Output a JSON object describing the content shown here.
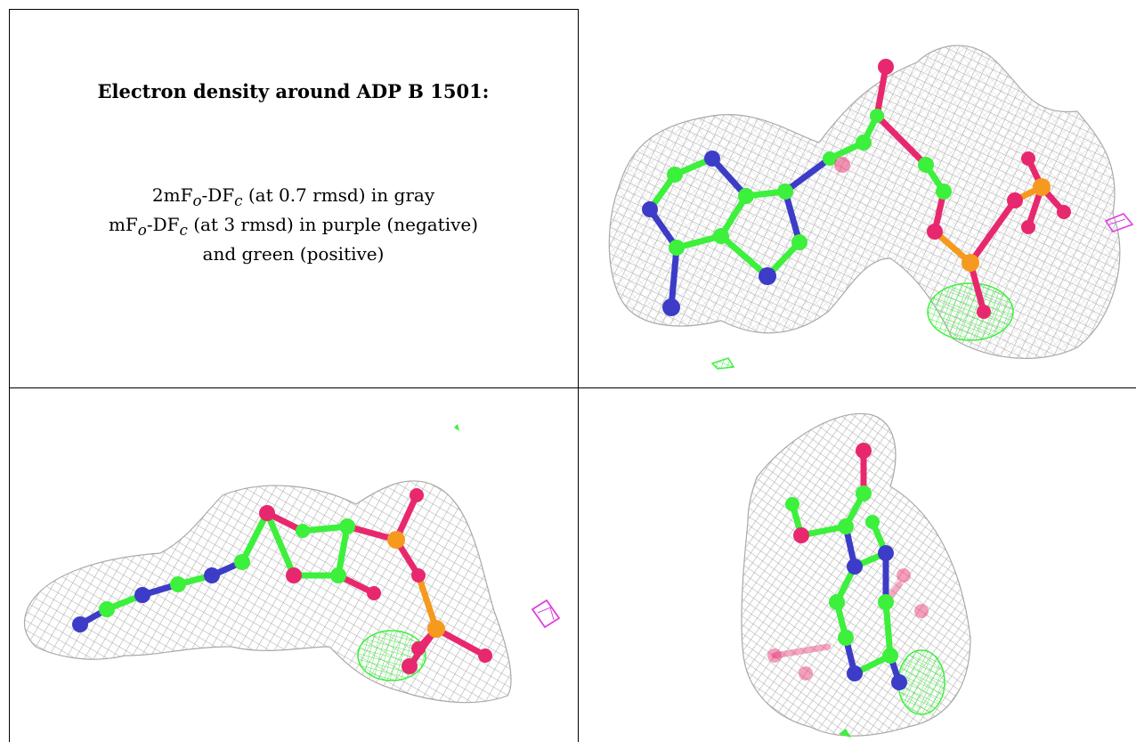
{
  "figure": {
    "title": "Electron density around ADP B 1501:",
    "legend": {
      "line1": {
        "main": "2mF",
        "sub1": "o",
        "mid": "-DF",
        "sub2": "c",
        "rest": " (at 0.7 rmsd) in gray"
      },
      "line2": {
        "main": "mF",
        "sub1": "o",
        "mid": "-DF",
        "sub2": "c",
        "rest": " (at 3 rmsd) in purple (negative)"
      },
      "line3": "and green (positive)"
    },
    "colors": {
      "mesh": "#a9a9a9",
      "carbon": "#3cf03c",
      "nitrogen": "#3c3cc8",
      "oxygen": "#e8286e",
      "phosphorus": "#f59a1e",
      "negative_density": "#e040e0",
      "positive_density": "#3cf03c"
    },
    "panels": [
      {
        "name": "view-top-right"
      },
      {
        "name": "view-bottom-left"
      },
      {
        "name": "view-bottom-right"
      }
    ]
  }
}
